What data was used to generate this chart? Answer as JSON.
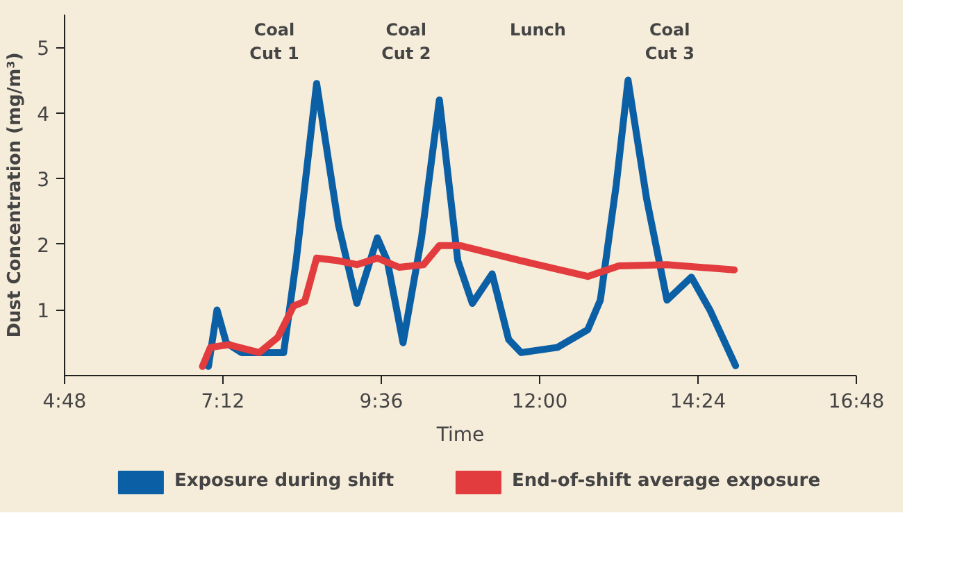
{
  "chart_data": {
    "type": "line",
    "xlabel": "Time",
    "ylabel": "Dust Concentration (mg/m³)",
    "xlim": [
      4.8,
      16.8
    ],
    "ylim": [
      0,
      5.5
    ],
    "xticks": [
      {
        "value": 4.8,
        "label": "4:48"
      },
      {
        "value": 7.2,
        "label": "7:12"
      },
      {
        "value": 9.6,
        "label": "9:36"
      },
      {
        "value": 12,
        "label": "12:00"
      },
      {
        "value": 14.4,
        "label": "14:24"
      },
      {
        "value": 16.8,
        "label": "16:48"
      }
    ],
    "yticks": [
      1,
      2,
      3,
      4,
      5
    ],
    "grid": false,
    "legend": "bottom",
    "marker": "none",
    "line_style": "solid",
    "annotations": [
      "Coal Cut 1",
      "Coal Cut 2",
      "Lunch",
      "Coal Cut 3"
    ],
    "series": [
      {
        "name": "Exposure during shift",
        "color": "#0b5fa5",
        "x": [
          6.98,
          7.11,
          7.25,
          7.48,
          8.12,
          8.31,
          8.62,
          8.95,
          9.23,
          9.54,
          9.69,
          9.93,
          10.21,
          10.48,
          10.76,
          10.98,
          11.28,
          11.53,
          11.72,
          12.27,
          12.73,
          12.92,
          13.16,
          13.34,
          13.62,
          13.93,
          14.3,
          14.58,
          14.97
        ],
        "values": [
          0.14,
          1.0,
          0.5,
          0.35,
          0.35,
          1.75,
          4.45,
          2.3,
          1.1,
          2.1,
          1.75,
          0.5,
          2.1,
          4.2,
          1.75,
          1.1,
          1.55,
          0.55,
          0.35,
          0.43,
          0.7,
          1.15,
          2.9,
          4.5,
          2.7,
          1.15,
          1.5,
          1.0,
          0.15
        ]
      },
      {
        "name": "End-of-shift average exposure",
        "color": "#e23c3e",
        "x": [
          6.89,
          7.01,
          7.29,
          7.75,
          8.03,
          8.27,
          8.44,
          8.62,
          8.95,
          9.23,
          9.54,
          9.87,
          10.24,
          10.48,
          10.8,
          11.72,
          12.73,
          13.2,
          13.93,
          14.95
        ],
        "values": [
          0.14,
          0.43,
          0.47,
          0.35,
          0.58,
          1.06,
          1.13,
          1.79,
          1.75,
          1.69,
          1.79,
          1.65,
          1.69,
          1.98,
          1.98,
          1.75,
          1.51,
          1.67,
          1.69,
          1.61
        ]
      }
    ]
  }
}
